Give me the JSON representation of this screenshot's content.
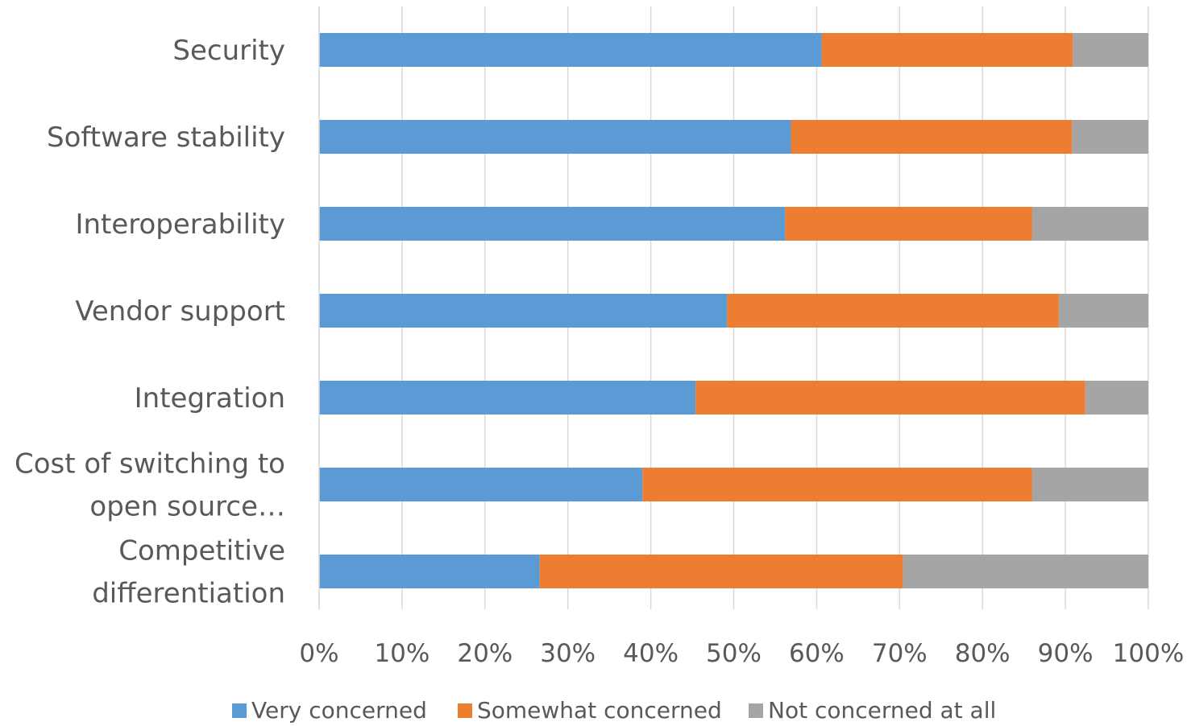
{
  "chart_data": {
    "type": "bar",
    "orientation": "horizontal",
    "stacking": "percent",
    "categories": [
      [
        "Security"
      ],
      [
        "Software stability"
      ],
      [
        "Interoperability"
      ],
      [
        "Vendor support"
      ],
      [
        "Integration"
      ],
      [
        "Cost of switching to",
        "open source…"
      ],
      [
        "Competitive",
        "differentiation"
      ]
    ],
    "series": [
      {
        "name": "Very concerned",
        "color": "#5B9BD5",
        "values": [
          60.6,
          56.9,
          56.2,
          49.2,
          45.4,
          39.0,
          26.6
        ]
      },
      {
        "name": "Somewhat concerned",
        "color": "#ED7D31",
        "values": [
          30.3,
          33.9,
          29.8,
          40.0,
          47.0,
          47.0,
          43.8
        ]
      },
      {
        "name": "Not concerned at all",
        "color": "#A5A5A5",
        "values": [
          9.1,
          9.2,
          14.0,
          10.8,
          7.6,
          14.0,
          29.6
        ]
      }
    ],
    "x_ticks": [
      "0%",
      "10%",
      "20%",
      "30%",
      "40%",
      "50%",
      "60%",
      "70%",
      "80%",
      "90%",
      "100%"
    ],
    "xlim": [
      0,
      100
    ],
    "grid": "vertical",
    "legend": "bottom",
    "title": "",
    "xlabel": "",
    "ylabel": ""
  }
}
